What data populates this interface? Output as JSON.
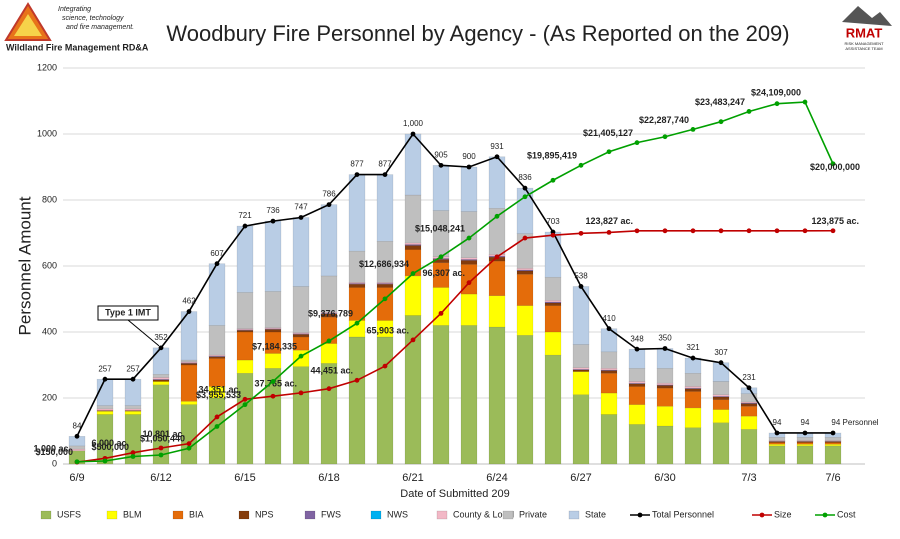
{
  "header": {
    "left_logo_name": "Wildland Fire Management RD&A",
    "left_logo_tagline": [
      "Integrating",
      "science, technology",
      "and fire management."
    ],
    "right_logo_name": "RMAT",
    "right_logo_subtitle": [
      "RISK MANAGEMENT",
      "ASSISTANCE TEAM"
    ]
  },
  "chart_data": {
    "type": "bar",
    "stacked": true,
    "title": "Woodbury Fire Personnel by Agency - (As Reported on the 209)",
    "x_label": "Date of Submitted 209",
    "y_label": "Personnel Amount",
    "categories": [
      "6/9",
      null,
      null,
      "6/12",
      null,
      null,
      "6/15",
      null,
      null,
      "6/18",
      null,
      null,
      "6/21",
      null,
      null,
      "6/24",
      null,
      null,
      "6/27",
      null,
      null,
      "6/30",
      null,
      null,
      "7/3",
      null,
      null,
      "7/6"
    ],
    "ylim": [
      0,
      1200
    ],
    "yticks": [
      0,
      200,
      400,
      600,
      800,
      1000,
      1200
    ],
    "grid": true,
    "legend": "bottom",
    "annotations": [
      {
        "text": "Type 1 IMT",
        "category": 3
      }
    ],
    "series": [
      {
        "name": "USFS",
        "color": "#9bbb59",
        "values": [
          40,
          150,
          150,
          240,
          180,
          200,
          275,
          290,
          295,
          305,
          385,
          385,
          450,
          420,
          420,
          415,
          390,
          330,
          210,
          150,
          120,
          115,
          110,
          125,
          105,
          55,
          55,
          55
        ]
      },
      {
        "name": "BLM",
        "color": "#ffff00",
        "values": [
          0,
          10,
          10,
          10,
          10,
          35,
          40,
          45,
          50,
          60,
          50,
          50,
          120,
          115,
          95,
          95,
          90,
          70,
          70,
          65,
          60,
          60,
          60,
          40,
          40,
          5,
          5,
          5
        ]
      },
      {
        "name": "BIA",
        "color": "#e46c0a",
        "values": [
          0,
          0,
          0,
          0,
          110,
          85,
          85,
          65,
          40,
          80,
          100,
          100,
          80,
          75,
          90,
          105,
          95,
          80,
          0,
          60,
          55,
          55,
          50,
          30,
          30,
          5,
          5,
          5
        ]
      },
      {
        "name": "NPS",
        "color": "#843c0c",
        "values": [
          0,
          2,
          2,
          5,
          5,
          5,
          5,
          8,
          8,
          10,
          10,
          10,
          12,
          10,
          12,
          12,
          10,
          8,
          5,
          8,
          8,
          8,
          8,
          8,
          8,
          3,
          3,
          3
        ]
      },
      {
        "name": "FWS",
        "color": "#8064a2",
        "values": [
          0,
          0,
          0,
          2,
          2,
          2,
          2,
          2,
          2,
          2,
          2,
          2,
          3,
          3,
          3,
          3,
          3,
          3,
          2,
          2,
          2,
          2,
          2,
          2,
          2,
          1,
          1,
          1
        ]
      },
      {
        "name": "NWS",
        "color": "#00b0f0",
        "values": [
          0,
          0,
          0,
          0,
          0,
          0,
          0,
          0,
          0,
          0,
          0,
          0,
          0,
          0,
          0,
          0,
          0,
          0,
          0,
          0,
          0,
          0,
          0,
          0,
          0,
          0,
          0,
          0
        ]
      },
      {
        "name": "County & Local",
        "color": "#f2b8c6",
        "values": [
          5,
          5,
          5,
          5,
          3,
          3,
          3,
          3,
          3,
          3,
          3,
          3,
          5,
          5,
          5,
          5,
          5,
          5,
          5,
          5,
          5,
          5,
          5,
          5,
          3,
          2,
          2,
          2
        ]
      },
      {
        "name": "Private",
        "color": "#bfbfbf",
        "values": [
          10,
          10,
          10,
          10,
          5,
          90,
          110,
          110,
          140,
          110,
          95,
          125,
          145,
          140,
          140,
          140,
          105,
          70,
          70,
          50,
          40,
          45,
          40,
          40,
          25,
          10,
          10,
          10
        ]
      },
      {
        "name": "State",
        "color": "#b9cde5",
        "values": [
          29,
          80,
          80,
          80,
          147,
          187,
          201,
          213,
          209,
          216,
          232,
          202,
          185,
          137,
          135,
          156,
          138,
          137,
          176,
          70,
          58,
          60,
          46,
          57,
          18,
          13,
          13,
          13
        ]
      },
      {
        "name": "Total Personnel",
        "type": "line",
        "color": "#000000",
        "values": [
          84,
          257,
          257,
          352,
          462,
          607,
          721,
          736,
          747,
          786,
          877,
          877,
          1000,
          905,
          900,
          931,
          836,
          703,
          538,
          410,
          348,
          350,
          321,
          307,
          231,
          94,
          94,
          94
        ],
        "value_labels": [
          "84",
          "257",
          "257",
          "352",
          "462",
          "607",
          "721",
          "736",
          "747",
          "786",
          "877",
          "877",
          "1,000",
          "905",
          "900",
          "931",
          "836",
          "703",
          "538",
          "410",
          "348",
          "350",
          "321",
          "307",
          "231",
          "94",
          "94",
          "94 Personnel"
        ]
      },
      {
        "name": "Size",
        "type": "line",
        "color": "#c00000",
        "values": [
          1000,
          3000,
          6000,
          8500,
          10801,
          25000,
          34351,
          36000,
          37765,
          40000,
          44451,
          52000,
          65903,
          80000,
          96307,
          110000,
          120000,
          121500,
          122500,
          123000,
          123827,
          123840,
          123850,
          123855,
          123860,
          123865,
          123870,
          123875
        ],
        "value_labels": [
          "1,000 ac.",
          null,
          "6,000 ac.",
          null,
          "10,801 ac.",
          null,
          "34,351 ac.",
          null,
          "37,765 ac.",
          null,
          "44,451 ac.",
          null,
          "65,903 ac.",
          null,
          "96,307 ac.",
          null,
          null,
          null,
          null,
          null,
          "123,827 ac.",
          null,
          null,
          null,
          null,
          null,
          null,
          "123,875 ac."
        ]
      },
      {
        "name": "Cost",
        "type": "line",
        "color": "#00a000",
        "values": [
          150000,
          200000,
          500000,
          600000,
          1050440,
          2500000,
          3955533,
          5500000,
          7184335,
          8200000,
          9376789,
          11000000,
          12686934,
          13800000,
          15048241,
          16500000,
          17800000,
          18900000,
          19895419,
          20800000,
          21405127,
          21800000,
          22287740,
          22800000,
          23483247,
          24000000,
          24109000,
          20000000
        ],
        "value_labels": [
          "$150,000",
          null,
          "$500,000",
          null,
          "$1,050,440",
          null,
          "$3,955,533",
          null,
          "$7,184,335",
          null,
          "$9,376,789",
          null,
          "$12,686,934",
          null,
          "$15,048,241",
          null,
          null,
          null,
          "$19,895,419",
          null,
          "$21,405,127",
          null,
          "$22,287,740",
          null,
          "$23,483,247",
          null,
          "$24,109,000",
          "$20,000,000"
        ]
      }
    ]
  }
}
